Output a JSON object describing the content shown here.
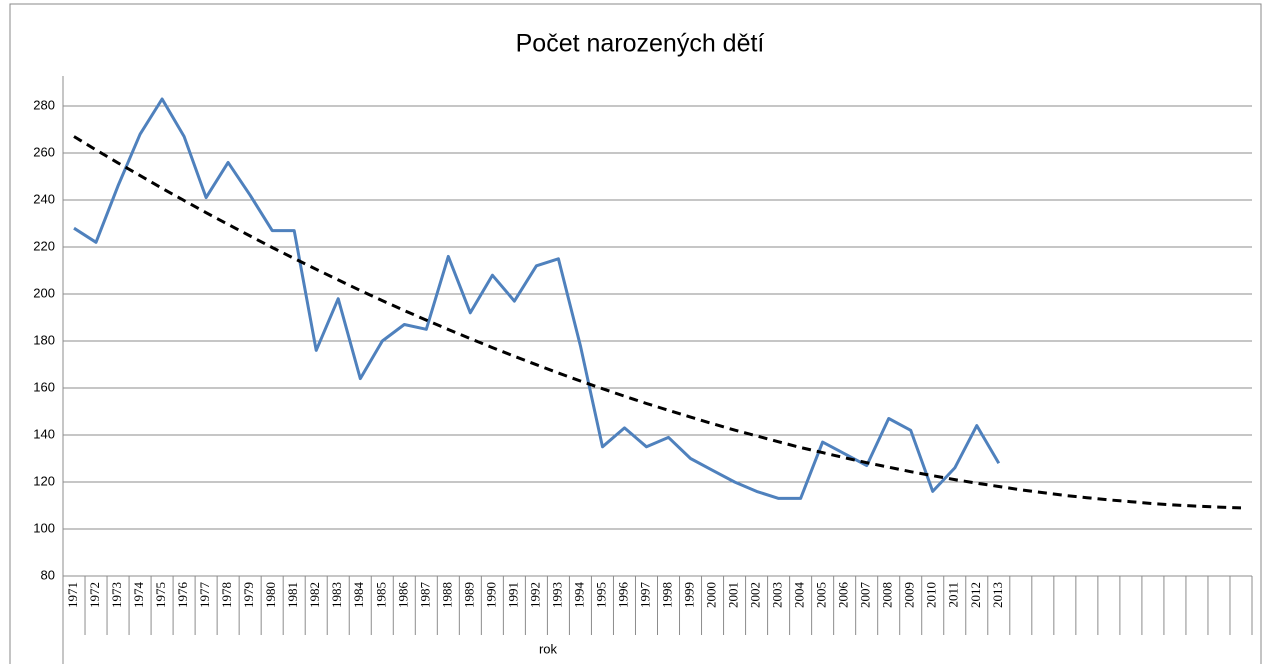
{
  "chart_data": {
    "type": "line",
    "title": "Počet narozených dětí",
    "x_label": "rok",
    "categories": [
      "1971",
      "1972",
      "1973",
      "1974",
      "1975",
      "1976",
      "1977",
      "1978",
      "1979",
      "1980",
      "1981",
      "1982",
      "1983",
      "1984",
      "1985",
      "1986",
      "1987",
      "1988",
      "1989",
      "1990",
      "1991",
      "1992",
      "1993",
      "1994",
      "1995",
      "1996",
      "1997",
      "1998",
      "1999",
      "2000",
      "2001",
      "2002",
      "2003",
      "2004",
      "2005",
      "2006",
      "2007",
      "2008",
      "2009",
      "2010",
      "2011",
      "2012",
      "2013",
      null,
      null,
      null,
      null,
      null,
      null,
      null,
      null,
      null,
      null,
      null
    ],
    "series": [
      {
        "color": "#4f81bd",
        "dashed": false,
        "values": [
          228,
          222,
          246,
          268,
          283,
          267,
          241,
          256,
          242,
          227,
          227,
          176,
          198,
          164,
          180,
          187,
          185,
          216,
          192,
          208,
          197,
          212,
          215,
          178,
          135,
          143,
          135,
          139,
          130,
          125,
          120,
          116,
          113,
          113,
          137,
          132,
          127,
          147,
          142,
          116,
          126,
          144,
          128,
          null,
          null,
          null,
          null,
          null,
          null,
          null,
          null,
          null,
          null,
          null
        ]
      },
      {
        "color": "#000000",
        "dashed": true,
        "values": [
          267.0,
          261.3,
          255.8,
          250.4,
          245.0,
          239.8,
          234.6,
          229.6,
          224.7,
          219.8,
          215.1,
          210.5,
          206.0,
          201.5,
          197.2,
          193.0,
          188.9,
          184.9,
          181.0,
          177.2,
          173.5,
          169.9,
          166.4,
          163.0,
          159.7,
          156.5,
          153.4,
          150.5,
          147.6,
          144.8,
          142.1,
          139.6,
          137.1,
          134.7,
          132.5,
          130.3,
          128.2,
          126.3,
          124.4,
          122.7,
          121.0,
          119.5,
          118.1,
          116.7,
          115.5,
          114.3,
          113.3,
          112.4,
          111.6,
          110.8,
          110.2,
          109.7,
          109.3,
          109.0
        ]
      }
    ],
    "ylim": [
      80,
      280
    ],
    "yticks": [
      80,
      100,
      120,
      140,
      160,
      180,
      200,
      220,
      240,
      260,
      280
    ],
    "grid": true
  }
}
